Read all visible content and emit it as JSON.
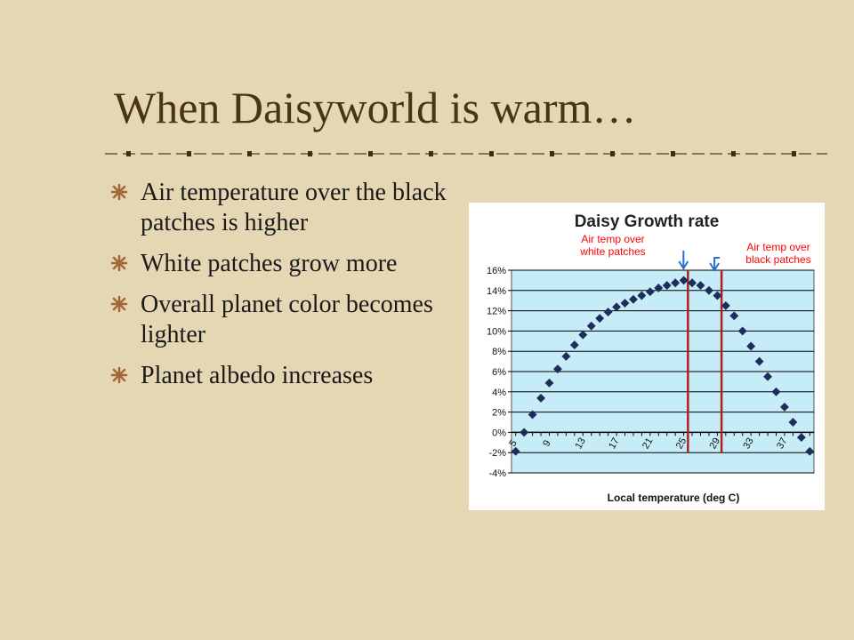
{
  "slide": {
    "title": "When Daisyworld is warm…",
    "bullets": [
      {
        "text": "Air temperature over the black patches is higher"
      },
      {
        "text": "White patches grow more"
      },
      {
        "text": "Overall planet color becomes lighter"
      },
      {
        "text": "Planet albedo increases"
      }
    ],
    "colors": {
      "background": "#e6d7b4",
      "title": "#4a3418",
      "bullet_icon": "#a0683a",
      "plot_area": "#c6ecf7",
      "marker": "#1f2d5c",
      "annotation": "#ff0000",
      "marker_line": "#b02020"
    }
  },
  "chart_data": {
    "type": "scatter",
    "title": "Daisy Growth rate",
    "xlabel": "Local temperature (deg C)",
    "ylabel": "",
    "x": [
      5,
      6,
      7,
      8,
      9,
      10,
      11,
      12,
      13,
      14,
      15,
      16,
      17,
      18,
      19,
      20,
      21,
      22,
      23,
      24,
      25,
      26,
      27,
      28,
      29,
      30,
      31,
      32,
      33,
      34,
      35,
      36,
      37,
      38,
      39,
      40
    ],
    "series": [
      {
        "values": [
          -1.875,
          0.0,
          1.75,
          3.375,
          4.875,
          6.25,
          7.5,
          8.625,
          9.625,
          10.5,
          11.25,
          11.875,
          12.375,
          12.75,
          13.125,
          13.5,
          13.875,
          14.25,
          14.5,
          14.75,
          15.0,
          14.75,
          14.5,
          14.0,
          13.5,
          12.5,
          11.5,
          10.0,
          8.5,
          7.0,
          5.5,
          4.0,
          2.5,
          1.0,
          -0.5,
          -1.875
        ]
      }
    ],
    "xtick_labels": [
      "5",
      "9",
      "13",
      "17",
      "21",
      "25",
      "29",
      "33",
      "37"
    ],
    "xtick_values": [
      5,
      9,
      13,
      17,
      21,
      25,
      29,
      33,
      37
    ],
    "ytick_labels": [
      "-4%",
      "-2%",
      "0%",
      "2%",
      "4%",
      "6%",
      "8%",
      "10%",
      "12%",
      "14%",
      "16%"
    ],
    "ytick_values": [
      -4,
      -2,
      0,
      2,
      4,
      6,
      8,
      10,
      12,
      14,
      16
    ],
    "ylim": [
      -4,
      16
    ],
    "xlim": [
      5,
      40
    ],
    "grid": "horizontal",
    "vertical_lines": [
      {
        "x": 25.5,
        "label": "Air temp over white patches"
      },
      {
        "x": 29.5,
        "label": "Air temp over black patches"
      }
    ],
    "annotations": [
      {
        "line1": "Air temp over",
        "line2": "white patches"
      },
      {
        "line1": "Air temp over",
        "line2": "black patches"
      }
    ]
  }
}
